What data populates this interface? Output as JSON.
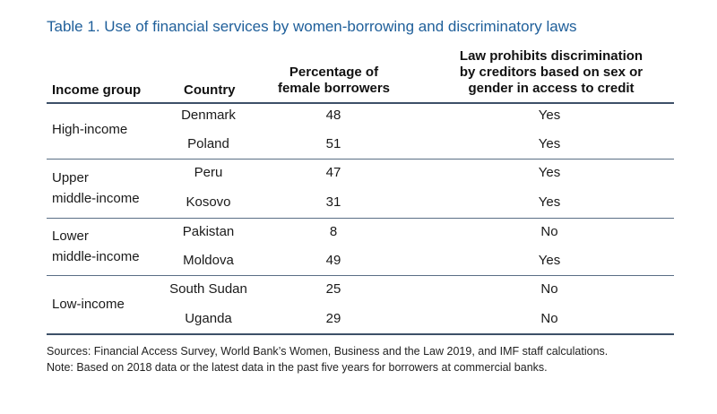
{
  "title": "Table 1. Use of financial services by women-borrowing and discriminatory laws",
  "headers": {
    "income_group": "Income group",
    "country": "Country",
    "pct_line1": "Percentage of",
    "pct_line2": "female borrowers",
    "law_line1": "Law prohibits discrimination",
    "law_line2": "by creditors based on sex or",
    "law_line3": "gender in access to credit"
  },
  "groups": [
    {
      "label_line1": "High-income",
      "label_line2": ""
    },
    {
      "label_line1": "Upper",
      "label_line2": "middle-income"
    },
    {
      "label_line1": "Lower",
      "label_line2": "middle-income"
    },
    {
      "label_line1": "Low-income",
      "label_line2": ""
    }
  ],
  "rows": [
    {
      "country": "Denmark",
      "pct": "48",
      "law": "Yes"
    },
    {
      "country": "Poland",
      "pct": "51",
      "law": "Yes"
    },
    {
      "country": "Peru",
      "pct": "47",
      "law": "Yes"
    },
    {
      "country": "Kosovo",
      "pct": "31",
      "law": "Yes"
    },
    {
      "country": "Pakistan",
      "pct": "8",
      "law": "No"
    },
    {
      "country": "Moldova",
      "pct": "49",
      "law": "Yes"
    },
    {
      "country": "South Sudan",
      "pct": "25",
      "law": "No"
    },
    {
      "country": "Uganda",
      "pct": "29",
      "law": "No"
    }
  ],
  "footnotes": {
    "sources": "Sources: Financial Access Survey, World Bank’s Women, Business and the Law 2019, and IMF staff calculations.",
    "note": "Note: Based on 2018 data or the latest data in the past five years for borrowers at commercial banks."
  }
}
